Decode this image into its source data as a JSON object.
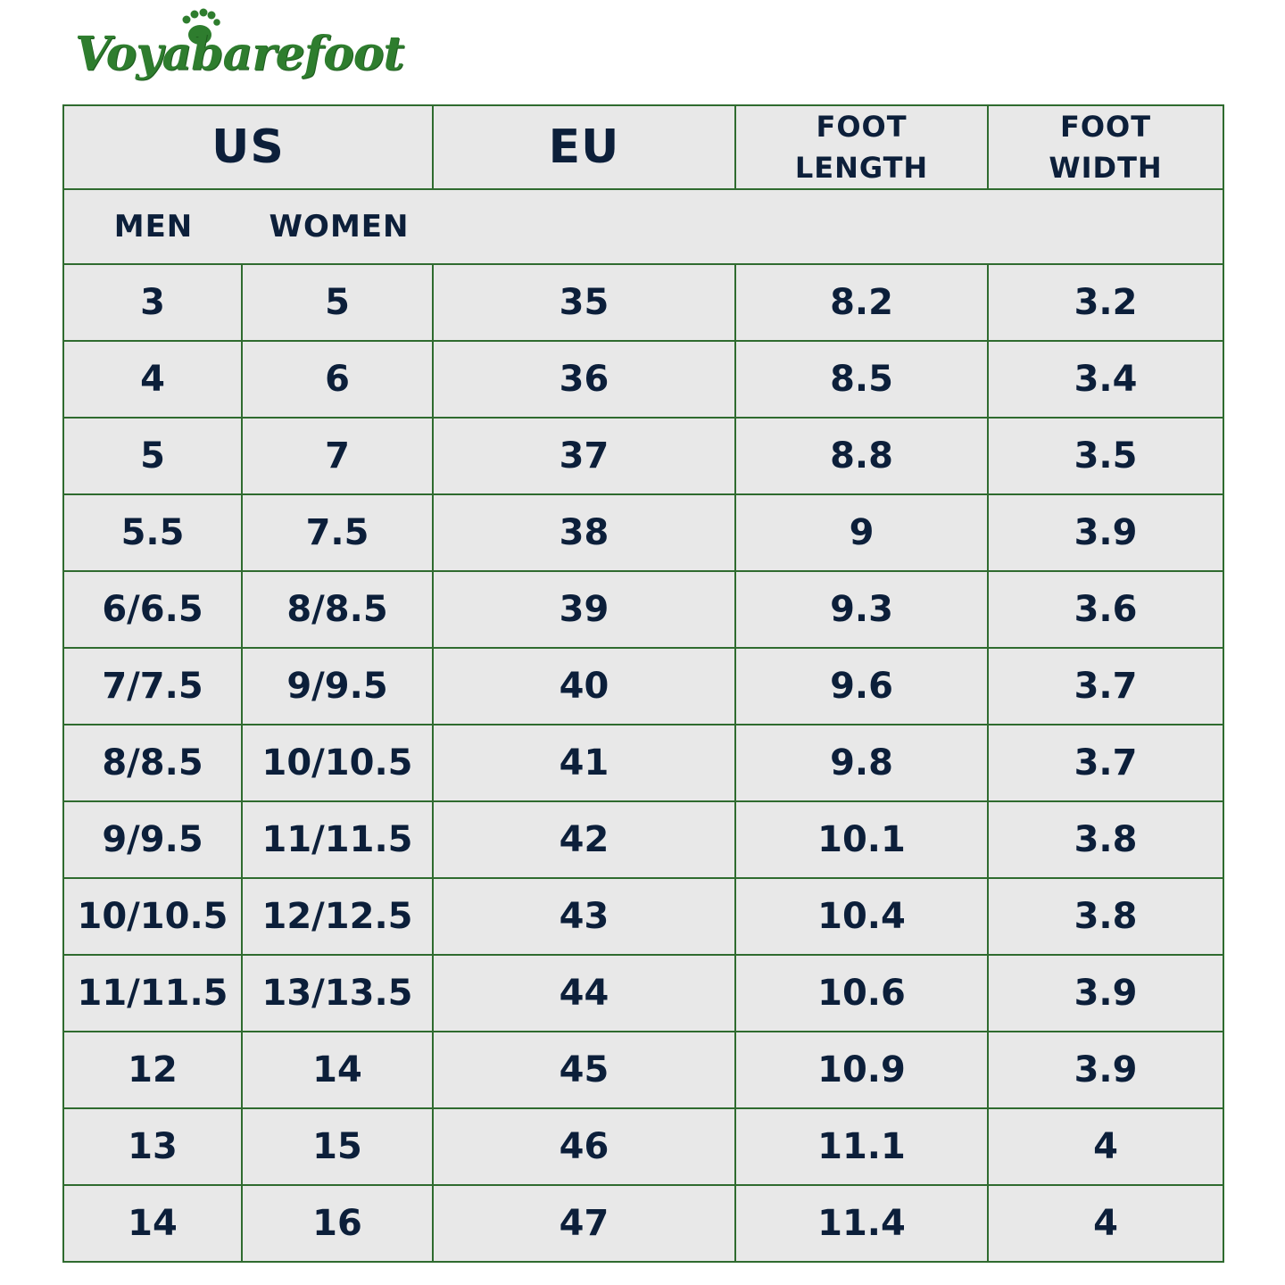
{
  "brand": {
    "name": "Voyabarefoot",
    "colors": {
      "logo_green": "#2e7d2e",
      "border_green": "#2f6b2f",
      "cell_bg": "#e8e8e8",
      "text_navy": "#0c1f3a"
    }
  },
  "table": {
    "headers": {
      "us": "US",
      "eu": "EU",
      "foot_length": [
        "FOOT",
        "LENGTH"
      ],
      "foot_width": [
        "FOOT",
        "WIDTH"
      ]
    },
    "subheaders": {
      "men": "MEN",
      "women": "WOMEN"
    },
    "rows": [
      [
        "3",
        "5",
        "35",
        "8.2",
        "3.2"
      ],
      [
        "4",
        "6",
        "36",
        "8.5",
        "3.4"
      ],
      [
        "5",
        "7",
        "37",
        "8.8",
        "3.5"
      ],
      [
        "5.5",
        "7.5",
        "38",
        "9",
        "3.9"
      ],
      [
        "6/6.5",
        "8/8.5",
        "39",
        "9.3",
        "3.6"
      ],
      [
        "7/7.5",
        "9/9.5",
        "40",
        "9.6",
        "3.7"
      ],
      [
        "8/8.5",
        "10/10.5",
        "41",
        "9.8",
        "3.7"
      ],
      [
        "9/9.5",
        "11/11.5",
        "42",
        "10.1",
        "3.8"
      ],
      [
        "10/10.5",
        "12/12.5",
        "43",
        "10.4",
        "3.8"
      ],
      [
        "11/11.5",
        "13/13.5",
        "44",
        "10.6",
        "3.9"
      ],
      [
        "12",
        "14",
        "45",
        "10.9",
        "3.9"
      ],
      [
        "13",
        "15",
        "46",
        "11.1",
        "4"
      ],
      [
        "14",
        "16",
        "47",
        "11.4",
        "4"
      ]
    ]
  }
}
